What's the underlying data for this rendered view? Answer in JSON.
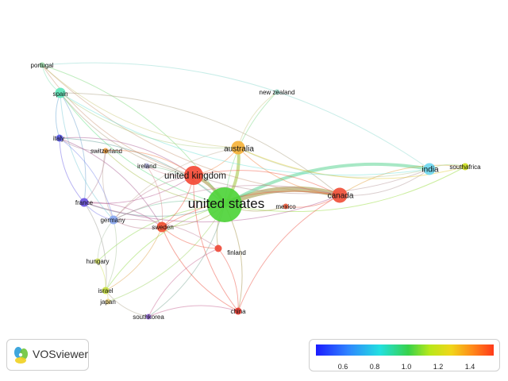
{
  "nodes": [
    {
      "id": "united_states",
      "label": "united states",
      "color": "#4ed43a",
      "size": 22
    },
    {
      "id": "united_kingdom",
      "label": "united kingdom",
      "color": "#f44a35",
      "size": 12
    },
    {
      "id": "canada",
      "label": "canada",
      "color": "#f0503a",
      "size": 8
    },
    {
      "id": "australia",
      "label": "australia",
      "color": "#f5b23a",
      "size": 7
    },
    {
      "id": "india",
      "label": "india",
      "color": "#6fd8f0",
      "size": 6
    },
    {
      "id": "south_africa",
      "label": "southafrica",
      "color": "#cde020",
      "size": 3
    },
    {
      "id": "new_zealand",
      "label": "new zealand",
      "color": "#9ed8c8",
      "size": 2
    },
    {
      "id": "portugal",
      "label": "portugal",
      "color": "#9bd8a8",
      "size": 2
    },
    {
      "id": "spain",
      "label": "spain",
      "color": "#5de6b8",
      "size": 5
    },
    {
      "id": "italy",
      "label": "italy",
      "color": "#5a5ae8",
      "size": 3
    },
    {
      "id": "switzerland",
      "label": "switzerland",
      "color": "#f0a040",
      "size": 2
    },
    {
      "id": "ireland",
      "label": "ireland",
      "color": "#b8b8e0",
      "size": 2
    },
    {
      "id": "france",
      "label": "france",
      "color": "#6a52e0",
      "size": 4
    },
    {
      "id": "germany",
      "label": "germany",
      "color": "#8aa8f0",
      "size": 4
    },
    {
      "id": "sweden",
      "label": "sweden",
      "color": "#f05030",
      "size": 5
    },
    {
      "id": "mexico",
      "label": "mexico",
      "color": "#f06040",
      "size": 2
    },
    {
      "id": "finland",
      "label": "finland",
      "color": "#ee4a38",
      "size": 3
    },
    {
      "id": "hungary",
      "label": "hungary",
      "color": "#d0e060",
      "size": 2
    },
    {
      "id": "israel",
      "label": "israel",
      "color": "#c8e040",
      "size": 3
    },
    {
      "id": "japan",
      "label": "japan",
      "color": "#e8d080",
      "size": 2
    },
    {
      "id": "south_korea",
      "label": "southkorea",
      "color": "#9a70e0",
      "size": 2
    },
    {
      "id": "china",
      "label": "china",
      "color": "#e83a30",
      "size": 3
    }
  ],
  "links": [
    [
      "united_states",
      "united_kingdom"
    ],
    [
      "united_states",
      "canada"
    ],
    [
      "united_states",
      "australia"
    ],
    [
      "united_states",
      "india"
    ],
    [
      "united_states",
      "south_africa"
    ],
    [
      "united_states",
      "spain"
    ],
    [
      "united_states",
      "italy"
    ],
    [
      "united_states",
      "france"
    ],
    [
      "united_states",
      "germany"
    ],
    [
      "united_states",
      "sweden"
    ],
    [
      "united_states",
      "finland"
    ],
    [
      "united_states",
      "china"
    ],
    [
      "united_states",
      "israel"
    ],
    [
      "united_states",
      "south_korea"
    ],
    [
      "united_states",
      "mexico"
    ],
    [
      "united_states",
      "new_zealand"
    ],
    [
      "united_states",
      "ireland"
    ],
    [
      "united_states",
      "switzerland"
    ],
    [
      "united_states",
      "hungary"
    ],
    [
      "united_states",
      "japan"
    ],
    [
      "united_states",
      "portugal"
    ],
    [
      "united_kingdom",
      "canada"
    ],
    [
      "united_kingdom",
      "australia"
    ],
    [
      "united_kingdom",
      "spain"
    ],
    [
      "united_kingdom",
      "italy"
    ],
    [
      "united_kingdom",
      "france"
    ],
    [
      "united_kingdom",
      "germany"
    ],
    [
      "united_kingdom",
      "sweden"
    ],
    [
      "united_kingdom",
      "india"
    ],
    [
      "united_kingdom",
      "ireland"
    ],
    [
      "united_kingdom",
      "switzerland"
    ],
    [
      "united_kingdom",
      "portugal"
    ],
    [
      "united_kingdom",
      "china"
    ],
    [
      "canada",
      "australia"
    ],
    [
      "canada",
      "india"
    ],
    [
      "canada",
      "south_africa"
    ],
    [
      "canada",
      "spain"
    ],
    [
      "canada",
      "france"
    ],
    [
      "canada",
      "germany"
    ],
    [
      "canada",
      "mexico"
    ],
    [
      "canada",
      "china"
    ],
    [
      "canada",
      "portugal"
    ],
    [
      "canada",
      "sweden"
    ],
    [
      "australia",
      "new_zealand"
    ],
    [
      "australia",
      "india"
    ],
    [
      "australia",
      "spain"
    ],
    [
      "australia",
      "germany"
    ],
    [
      "australia",
      "portugal"
    ],
    [
      "australia",
      "south_africa"
    ],
    [
      "india",
      "south_africa"
    ],
    [
      "india",
      "portugal"
    ],
    [
      "india",
      "spain"
    ],
    [
      "spain",
      "italy"
    ],
    [
      "spain",
      "france"
    ],
    [
      "spain",
      "germany"
    ],
    [
      "spain",
      "portugal"
    ],
    [
      "italy",
      "france"
    ],
    [
      "italy",
      "germany"
    ],
    [
      "italy",
      "switzerland"
    ],
    [
      "italy",
      "sweden"
    ],
    [
      "france",
      "germany"
    ],
    [
      "france",
      "sweden"
    ],
    [
      "france",
      "switzerland"
    ],
    [
      "france",
      "israel"
    ],
    [
      "germany",
      "sweden"
    ],
    [
      "germany",
      "finland"
    ],
    [
      "germany",
      "hungary"
    ],
    [
      "germany",
      "israel"
    ],
    [
      "sweden",
      "finland"
    ],
    [
      "sweden",
      "israel"
    ],
    [
      "sweden",
      "china"
    ],
    [
      "finland",
      "china"
    ],
    [
      "finland",
      "south_korea"
    ],
    [
      "israel",
      "japan"
    ],
    [
      "israel",
      "south_korea"
    ],
    [
      "hungary",
      "israel"
    ],
    [
      "china",
      "south_korea"
    ],
    [
      "ireland",
      "sweden"
    ],
    [
      "switzerland",
      "germany"
    ]
  ],
  "legend": {
    "ticks": [
      "0.6",
      "0.8",
      "1.0",
      "1.2",
      "1.4"
    ]
  },
  "logo": {
    "text": "VOSviewer",
    "colors": [
      "#2a9cd8",
      "#6dc43a",
      "#f0d020"
    ]
  }
}
